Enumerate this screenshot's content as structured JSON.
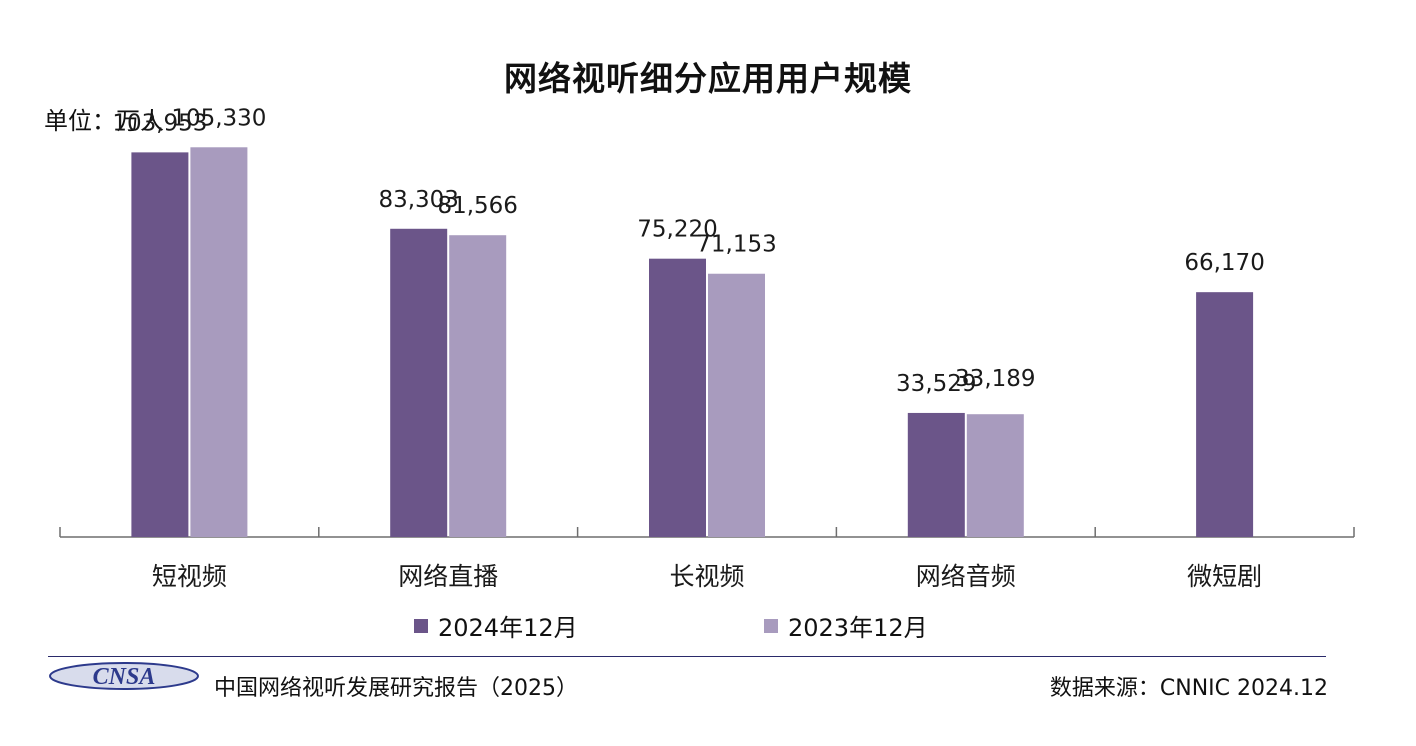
{
  "title": "网络视听细分应用用户规模",
  "unit_label": "单位：万人",
  "chart_data": {
    "type": "bar",
    "title": "网络视听细分应用用户规模",
    "categories": [
      "短视频",
      "网络直播",
      "长视频",
      "网络音频",
      "微短剧"
    ],
    "series": [
      {
        "name": "2024年12月",
        "color": "#6b5589",
        "values": [
          103953,
          83303,
          75220,
          33529,
          66170
        ],
        "labels": [
          "103,953",
          "83,303",
          "75,220",
          "33,529",
          "66,170"
        ]
      },
      {
        "name": "2023年12月",
        "color": "#a89bbe",
        "values": [
          105330,
          81566,
          71153,
          33189,
          null
        ],
        "labels": [
          "105,330",
          "81,566",
          "71,153",
          "33,189",
          null
        ]
      }
    ],
    "ylim": [
      0,
      110000
    ],
    "grid": false,
    "legend": "bottom"
  },
  "footer": {
    "logo_text": "CNSA",
    "report": "中国网络视听发展研究报告（2025）",
    "source": "数据来源：CNNIC  2024.12"
  }
}
